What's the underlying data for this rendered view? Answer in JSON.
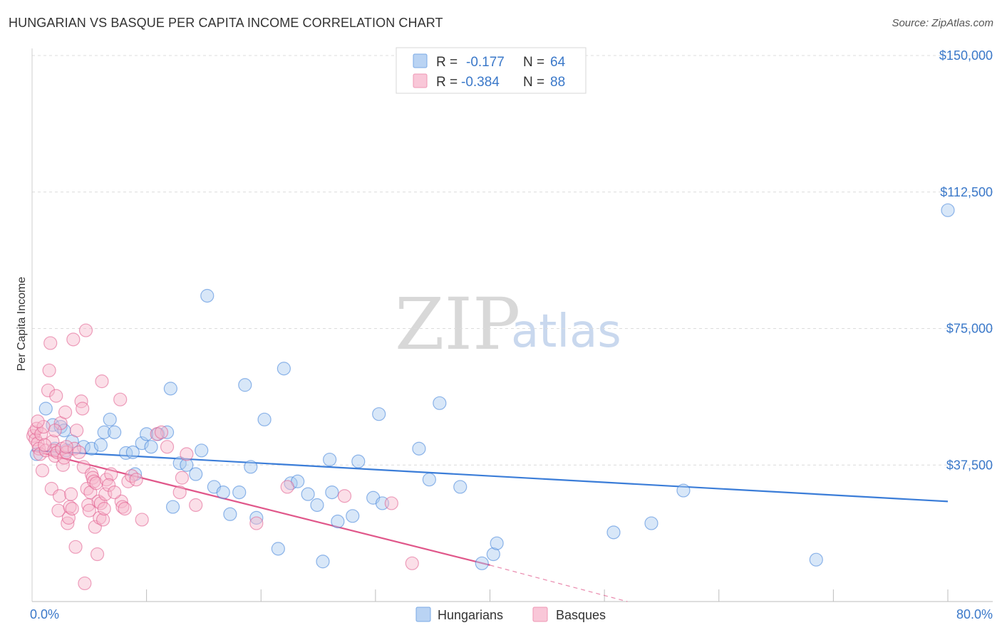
{
  "title": "HUNGARIAN VS BASQUE PER CAPITA INCOME CORRELATION CHART",
  "source": "Source: ZipAtlas.com",
  "watermark": {
    "zip": "ZIP",
    "atlas": "atlas"
  },
  "legend": {
    "rows": [
      {
        "r_label": "R =",
        "r_value": "-0.177",
        "n_label": "N =",
        "n_value": "64",
        "color": "#8db8ec"
      },
      {
        "r_label": "R =",
        "r_value": "-0.384",
        "n_label": "N =",
        "n_value": "88",
        "color": "#f4a9c2"
      }
    ]
  },
  "bottom_legend": [
    {
      "label": "Hungarians",
      "color": "#8db8ec"
    },
    {
      "label": "Basques",
      "color": "#f4a9c2"
    }
  ],
  "chart_data": {
    "type": "scatter",
    "title": "HUNGARIAN VS BASQUE PER CAPITA INCOME CORRELATION CHART",
    "xlabel": "",
    "ylabel": "Per Capita Income",
    "xlim": [
      0,
      80
    ],
    "ylim": [
      0,
      153000
    ],
    "x_tick_labels": [
      "0.0%",
      "80.0%"
    ],
    "y_ticks": [
      37500,
      75000,
      112500,
      150000
    ],
    "y_tick_labels": [
      "$37,500",
      "$75,000",
      "$112,500",
      "$150,000"
    ],
    "grid": true,
    "series": [
      {
        "name": "Hungarians",
        "color": "#3b7dd8",
        "fill": "#a9c9f0",
        "trend": {
          "x0": 0,
          "y0": 41500,
          "x1": 80,
          "y1": 27500
        },
        "points": [
          [
            0.4,
            40500
          ],
          [
            1.2,
            53000
          ],
          [
            1.8,
            48500
          ],
          [
            2.5,
            48000
          ],
          [
            2.8,
            47000
          ],
          [
            3.5,
            44000
          ],
          [
            4.5,
            42500
          ],
          [
            5.2,
            42000
          ],
          [
            6.3,
            46500
          ],
          [
            6.8,
            50000
          ],
          [
            7.2,
            46500
          ],
          [
            8.2,
            40800
          ],
          [
            8.8,
            41000
          ],
          [
            9.6,
            43500
          ],
          [
            10.0,
            46000
          ],
          [
            10.4,
            42500
          ],
          [
            11.0,
            46000
          ],
          [
            11.8,
            46500
          ],
          [
            12.1,
            58500
          ],
          [
            12.3,
            26000
          ],
          [
            12.9,
            38000
          ],
          [
            13.5,
            37500
          ],
          [
            14.3,
            35000
          ],
          [
            14.8,
            41500
          ],
          [
            15.3,
            84000
          ],
          [
            15.9,
            31500
          ],
          [
            16.7,
            30000
          ],
          [
            17.3,
            24000
          ],
          [
            18.1,
            30000
          ],
          [
            18.6,
            59500
          ],
          [
            19.1,
            37000
          ],
          [
            19.6,
            23000
          ],
          [
            20.3,
            50000
          ],
          [
            21.5,
            14500
          ],
          [
            22.0,
            64000
          ],
          [
            22.6,
            32500
          ],
          [
            23.2,
            33000
          ],
          [
            24.1,
            29500
          ],
          [
            24.9,
            26500
          ],
          [
            25.4,
            11000
          ],
          [
            26.2,
            30000
          ],
          [
            26.7,
            22000
          ],
          [
            28.0,
            23500
          ],
          [
            28.5,
            38500
          ],
          [
            29.8,
            28500
          ],
          [
            30.3,
            51500
          ],
          [
            30.6,
            27000
          ],
          [
            33.8,
            42000
          ],
          [
            34.7,
            33500
          ],
          [
            35.6,
            54500
          ],
          [
            37.4,
            31500
          ],
          [
            39.3,
            10500
          ],
          [
            40.3,
            13000
          ],
          [
            40.6,
            16000
          ],
          [
            50.8,
            19000
          ],
          [
            54.1,
            21500
          ],
          [
            56.9,
            30500
          ],
          [
            68.5,
            11500
          ],
          [
            80.0,
            107500
          ],
          [
            2.0,
            42000
          ],
          [
            3.0,
            41500
          ],
          [
            6.0,
            43000
          ],
          [
            9.0,
            35000
          ],
          [
            26.0,
            39000
          ]
        ]
      },
      {
        "name": "Basques",
        "color": "#e0578a",
        "fill": "#f6b8cd",
        "trend": {
          "x0": 0,
          "y0": 41500,
          "x1": 40,
          "y1": 10000,
          "dash_x1": 52,
          "dash_y1": 0
        },
        "points": [
          [
            0.1,
            45500
          ],
          [
            0.2,
            46500
          ],
          [
            0.3,
            44500
          ],
          [
            0.4,
            47500
          ],
          [
            0.5,
            43500
          ],
          [
            0.6,
            42000
          ],
          [
            0.7,
            40500
          ],
          [
            0.8,
            46000
          ],
          [
            0.9,
            36000
          ],
          [
            1.0,
            48000
          ],
          [
            1.2,
            41500
          ],
          [
            1.4,
            58000
          ],
          [
            1.5,
            63500
          ],
          [
            1.6,
            71000
          ],
          [
            1.7,
            31000
          ],
          [
            1.8,
            44000
          ],
          [
            1.9,
            41500
          ],
          [
            2.0,
            40000
          ],
          [
            2.1,
            56500
          ],
          [
            2.2,
            41000
          ],
          [
            2.3,
            25000
          ],
          [
            2.4,
            29000
          ],
          [
            2.5,
            49000
          ],
          [
            2.6,
            42000
          ],
          [
            2.7,
            37500
          ],
          [
            2.8,
            39500
          ],
          [
            2.9,
            52000
          ],
          [
            3.0,
            41000
          ],
          [
            3.1,
            21500
          ],
          [
            3.2,
            23000
          ],
          [
            3.3,
            26000
          ],
          [
            3.4,
            29500
          ],
          [
            3.5,
            25500
          ],
          [
            3.6,
            72000
          ],
          [
            3.7,
            42000
          ],
          [
            3.8,
            15000
          ],
          [
            3.9,
            47000
          ],
          [
            4.1,
            41000
          ],
          [
            4.3,
            55000
          ],
          [
            4.4,
            53000
          ],
          [
            4.5,
            37000
          ],
          [
            4.6,
            5000
          ],
          [
            4.7,
            74500
          ],
          [
            4.8,
            31000
          ],
          [
            4.9,
            26500
          ],
          [
            5.0,
            25000
          ],
          [
            5.1,
            30000
          ],
          [
            5.2,
            35000
          ],
          [
            5.3,
            34000
          ],
          [
            5.4,
            33000
          ],
          [
            5.5,
            20500
          ],
          [
            5.6,
            32500
          ],
          [
            5.7,
            13000
          ],
          [
            5.8,
            27500
          ],
          [
            5.9,
            23000
          ],
          [
            6.0,
            27000
          ],
          [
            6.1,
            60500
          ],
          [
            6.2,
            22500
          ],
          [
            6.3,
            25500
          ],
          [
            6.4,
            29500
          ],
          [
            6.5,
            33500
          ],
          [
            6.9,
            35000
          ],
          [
            7.7,
            55500
          ],
          [
            7.8,
            27500
          ],
          [
            7.9,
            26000
          ],
          [
            8.1,
            25500
          ],
          [
            8.4,
            33000
          ],
          [
            8.7,
            34500
          ],
          [
            9.1,
            33500
          ],
          [
            9.6,
            22500
          ],
          [
            10.9,
            46000
          ],
          [
            11.3,
            46500
          ],
          [
            11.8,
            42500
          ],
          [
            12.9,
            30000
          ],
          [
            13.1,
            34000
          ],
          [
            13.5,
            40500
          ],
          [
            14.3,
            26500
          ],
          [
            19.6,
            21500
          ],
          [
            22.3,
            31500
          ],
          [
            27.3,
            29000
          ],
          [
            31.4,
            27000
          ],
          [
            33.2,
            10500
          ],
          [
            6.7,
            32000
          ],
          [
            7.2,
            30000
          ],
          [
            1.1,
            43000
          ],
          [
            0.5,
            49500
          ],
          [
            2.0,
            47000
          ],
          [
            3.0,
            42500
          ]
        ]
      }
    ]
  }
}
